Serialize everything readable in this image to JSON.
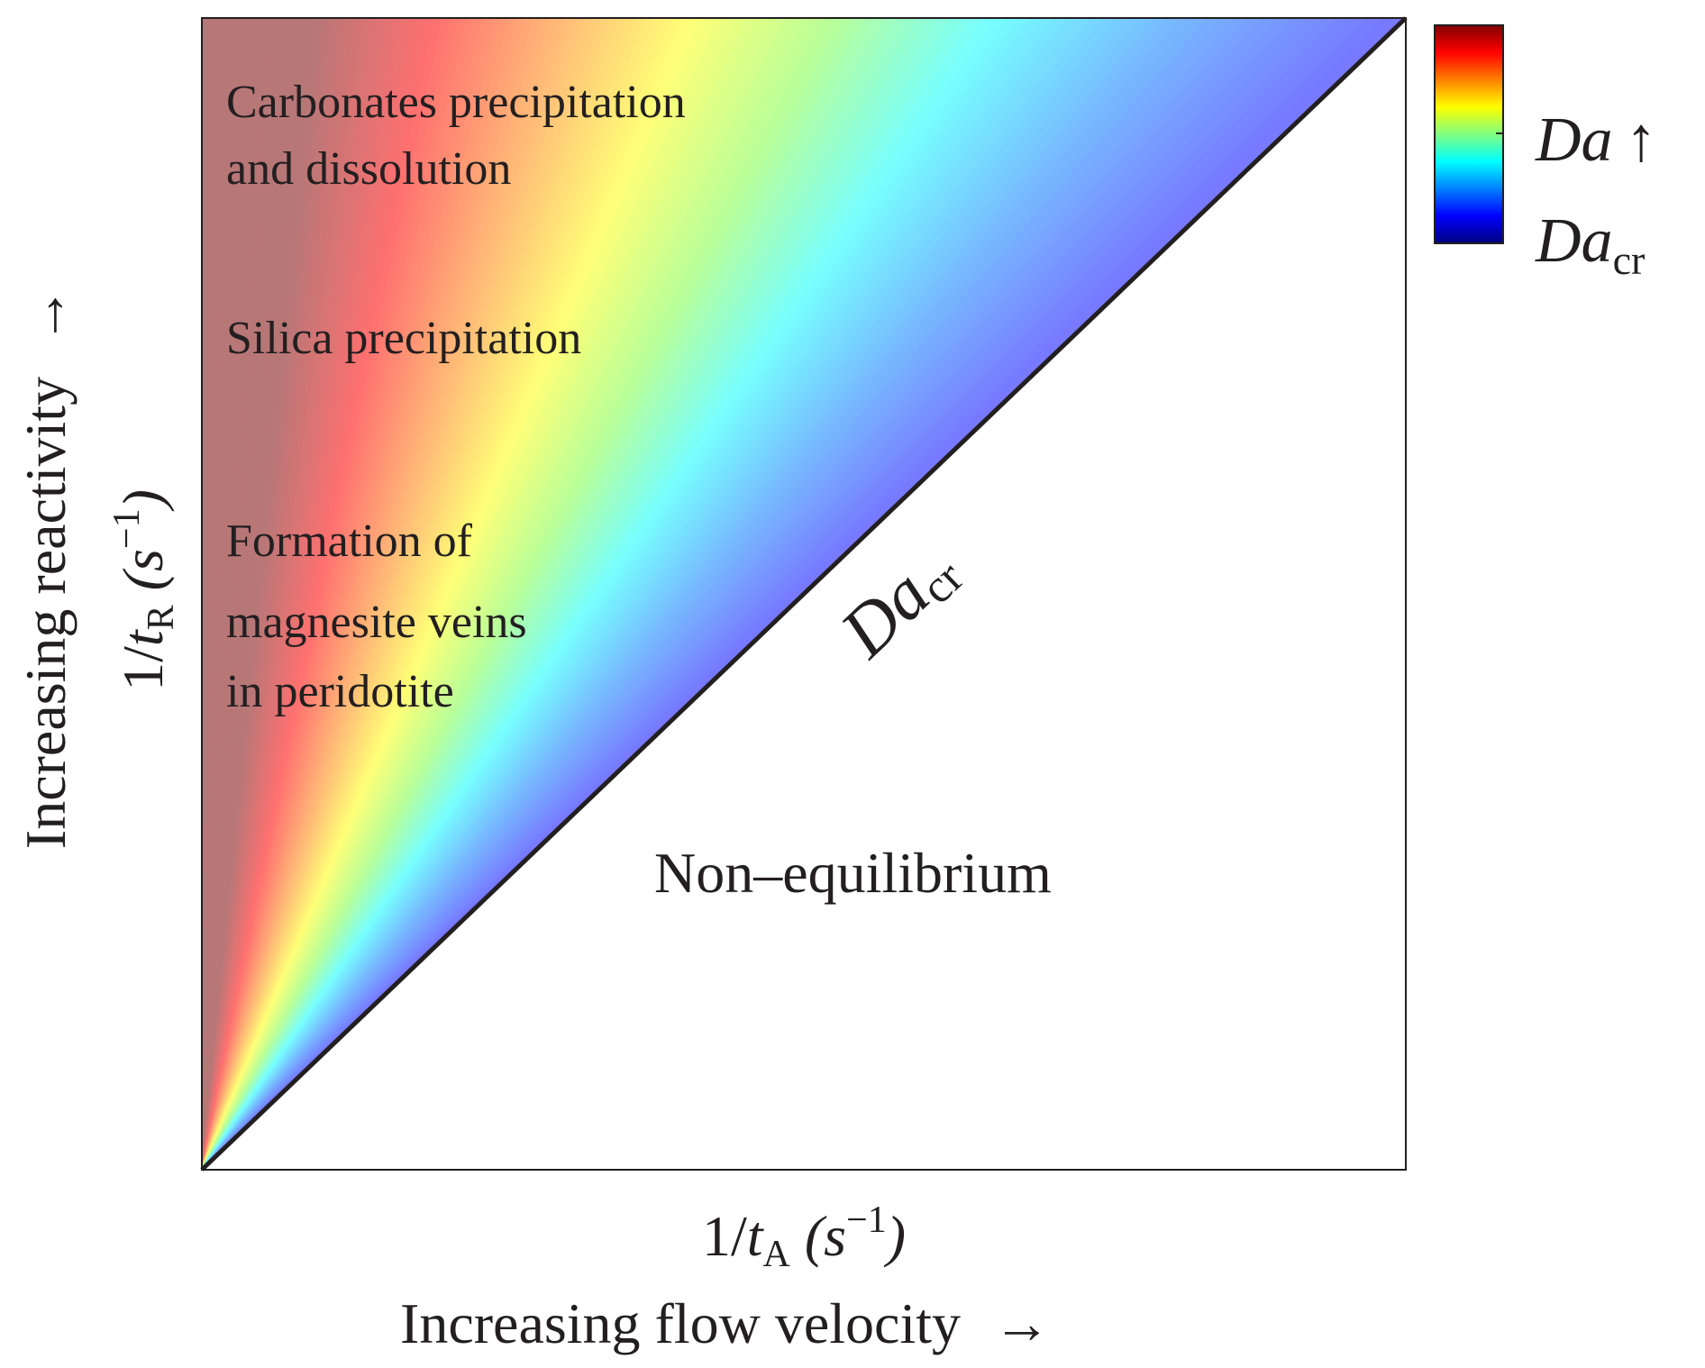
{
  "region_labels": {
    "carbonates_line1": "Carbonates precipitation",
    "carbonates_line2": "and dissolution",
    "silica": "Silica precipitation",
    "magnesite_line1": "Formation of",
    "magnesite_line2": "magnesite veins",
    "magnesite_line3": "in peridotite",
    "non_equilibrium": "Non–equilibrium"
  },
  "boundary_label": {
    "main": "Da",
    "subscript": "cr"
  },
  "colorbar": {
    "top_label_main": "Da",
    "top_label_arrow": "↑",
    "bottom_label_main": "Da",
    "bottom_label_subscript": "cr",
    "colormap": "jet",
    "colors": [
      "#800000",
      "#ff0000",
      "#ff8000",
      "#ffff00",
      "#80ff80",
      "#00ffff",
      "#0080ff",
      "#0000ff",
      "#000080"
    ]
  },
  "x_axis": {
    "quantity_prefix": "1/",
    "quantity_var": "t",
    "quantity_sub": "A",
    "unit_open": " (",
    "unit_var": "s",
    "unit_sup": "−1",
    "unit_close": ")",
    "description": "Increasing flow velocity",
    "arrow": "→"
  },
  "y_axis": {
    "quantity_prefix": "1/",
    "quantity_var": "t",
    "quantity_sub": "R",
    "unit_open": " (",
    "unit_var": "s",
    "unit_sup": "−1",
    "unit_close": ")",
    "description": "Increasing reactivity",
    "arrow": "→"
  },
  "wedge_colors": {
    "stops": [
      "#b87777",
      "#b87777",
      "#ff7070",
      "#ffb877",
      "#ffff77",
      "#b8ff99",
      "#77ffff",
      "#77b8ff",
      "#7777ff"
    ]
  }
}
